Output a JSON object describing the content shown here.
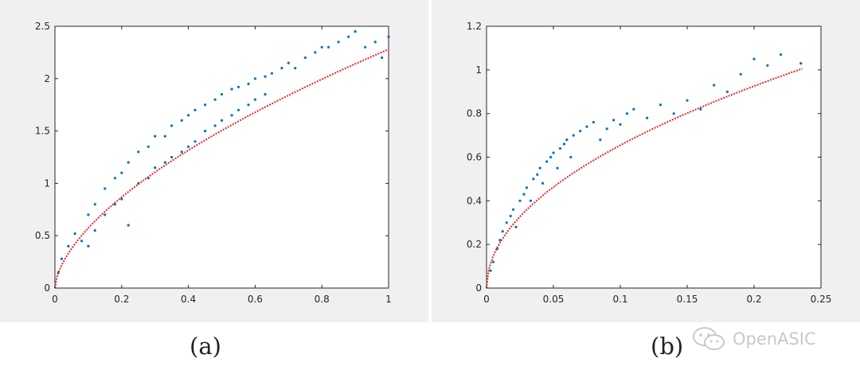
{
  "chart_data": [
    {
      "type": "scatter",
      "caption": "(a)",
      "xlim": [
        0,
        1
      ],
      "ylim": [
        0,
        2.5
      ],
      "x_ticks": [
        "0",
        "0.2",
        "0.4",
        "0.6",
        "0.8",
        "1"
      ],
      "y_ticks": [
        "0",
        "0.5",
        "1",
        "1.5",
        "2",
        "2.5"
      ],
      "grid": false,
      "series": [
        {
          "kind": "scatter",
          "color": "#0072bd",
          "points": [
            [
              0.01,
              0.15
            ],
            [
              0.02,
              0.28
            ],
            [
              0.04,
              0.4
            ],
            [
              0.06,
              0.52
            ],
            [
              0.08,
              0.45
            ],
            [
              0.1,
              0.7
            ],
            [
              0.1,
              0.4
            ],
            [
              0.12,
              0.8
            ],
            [
              0.12,
              0.55
            ],
            [
              0.15,
              0.95
            ],
            [
              0.15,
              0.7
            ],
            [
              0.18,
              1.05
            ],
            [
              0.18,
              0.8
            ],
            [
              0.2,
              1.1
            ],
            [
              0.2,
              0.85
            ],
            [
              0.22,
              1.2
            ],
            [
              0.22,
              0.6
            ],
            [
              0.25,
              1.3
            ],
            [
              0.25,
              1.0
            ],
            [
              0.28,
              1.35
            ],
            [
              0.28,
              1.05
            ],
            [
              0.3,
              1.45
            ],
            [
              0.3,
              1.15
            ],
            [
              0.33,
              1.45
            ],
            [
              0.33,
              1.2
            ],
            [
              0.35,
              1.55
            ],
            [
              0.35,
              1.25
            ],
            [
              0.38,
              1.6
            ],
            [
              0.38,
              1.3
            ],
            [
              0.4,
              1.65
            ],
            [
              0.4,
              1.35
            ],
            [
              0.42,
              1.7
            ],
            [
              0.42,
              1.4
            ],
            [
              0.45,
              1.75
            ],
            [
              0.45,
              1.5
            ],
            [
              0.48,
              1.8
            ],
            [
              0.48,
              1.55
            ],
            [
              0.5,
              1.85
            ],
            [
              0.5,
              1.6
            ],
            [
              0.53,
              1.9
            ],
            [
              0.53,
              1.65
            ],
            [
              0.55,
              1.92
            ],
            [
              0.55,
              1.7
            ],
            [
              0.58,
              1.95
            ],
            [
              0.58,
              1.75
            ],
            [
              0.6,
              2.0
            ],
            [
              0.6,
              1.8
            ],
            [
              0.63,
              2.02
            ],
            [
              0.63,
              1.85
            ],
            [
              0.65,
              2.05
            ],
            [
              0.68,
              2.1
            ],
            [
              0.7,
              2.15
            ],
            [
              0.72,
              2.1
            ],
            [
              0.75,
              2.2
            ],
            [
              0.78,
              2.25
            ],
            [
              0.8,
              2.3
            ],
            [
              0.82,
              2.3
            ],
            [
              0.85,
              2.35
            ],
            [
              0.88,
              2.4
            ],
            [
              0.9,
              2.45
            ],
            [
              0.93,
              2.3
            ],
            [
              0.96,
              2.35
            ],
            [
              0.98,
              2.2
            ],
            [
              1.0,
              2.4
            ]
          ]
        },
        {
          "kind": "fit",
          "color": "#e8262b",
          "equation_form": "y = 2.28 * x^0.6",
          "coef": 2.28,
          "power": 0.6,
          "x_range": [
            0,
            1
          ]
        }
      ]
    },
    {
      "type": "scatter",
      "caption": "(b)",
      "xlim": [
        0,
        0.25
      ],
      "ylim": [
        0,
        1.2
      ],
      "x_ticks": [
        "0",
        "0.05",
        "0.1",
        "0.15",
        "0.2",
        "0.25"
      ],
      "y_ticks": [
        "0",
        "0.2",
        "0.4",
        "0.6",
        "0.8",
        "1",
        "1.2"
      ],
      "grid": false,
      "series": [
        {
          "kind": "scatter",
          "color": "#0072bd",
          "points": [
            [
              0.003,
              0.08
            ],
            [
              0.005,
              0.12
            ],
            [
              0.008,
              0.18
            ],
            [
              0.01,
              0.22
            ],
            [
              0.012,
              0.26
            ],
            [
              0.015,
              0.3
            ],
            [
              0.018,
              0.33
            ],
            [
              0.02,
              0.36
            ],
            [
              0.022,
              0.28
            ],
            [
              0.025,
              0.4
            ],
            [
              0.028,
              0.43
            ],
            [
              0.03,
              0.46
            ],
            [
              0.033,
              0.4
            ],
            [
              0.035,
              0.5
            ],
            [
              0.038,
              0.52
            ],
            [
              0.04,
              0.55
            ],
            [
              0.042,
              0.48
            ],
            [
              0.045,
              0.58
            ],
            [
              0.048,
              0.6
            ],
            [
              0.05,
              0.62
            ],
            [
              0.053,
              0.55
            ],
            [
              0.055,
              0.64
            ],
            [
              0.058,
              0.66
            ],
            [
              0.06,
              0.68
            ],
            [
              0.063,
              0.6
            ],
            [
              0.065,
              0.7
            ],
            [
              0.07,
              0.72
            ],
            [
              0.075,
              0.74
            ],
            [
              0.08,
              0.76
            ],
            [
              0.085,
              0.68
            ],
            [
              0.09,
              0.73
            ],
            [
              0.095,
              0.77
            ],
            [
              0.1,
              0.75
            ],
            [
              0.105,
              0.8
            ],
            [
              0.11,
              0.82
            ],
            [
              0.12,
              0.78
            ],
            [
              0.13,
              0.84
            ],
            [
              0.14,
              0.8
            ],
            [
              0.15,
              0.86
            ],
            [
              0.16,
              0.82
            ],
            [
              0.17,
              0.93
            ],
            [
              0.18,
              0.9
            ],
            [
              0.19,
              0.98
            ],
            [
              0.2,
              1.05
            ],
            [
              0.21,
              1.02
            ],
            [
              0.22,
              1.07
            ],
            [
              0.235,
              1.03
            ]
          ]
        },
        {
          "kind": "fit",
          "color": "#e8262b",
          "equation_form": "y = 2.07 * x^0.5",
          "coef": 2.07,
          "power": 0.5,
          "x_range": [
            0,
            0.236
          ]
        }
      ]
    }
  ],
  "watermark": {
    "text": "OpenASIC",
    "icon": "wechat-icon"
  }
}
